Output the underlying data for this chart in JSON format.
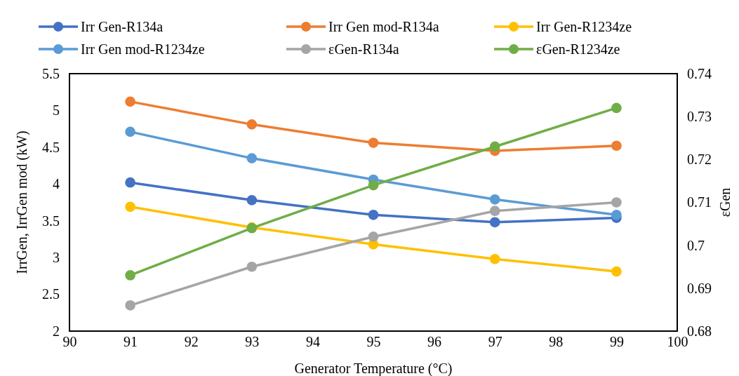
{
  "chart_data": {
    "type": "line",
    "xlabel": "Generator Temperature (°C)",
    "ylabel": "IrrGen, IrrGen mod (kW)",
    "y2label": "εGen",
    "x": [
      91,
      93,
      95,
      97,
      99
    ],
    "xlim": [
      90,
      100
    ],
    "xticks": [
      90,
      91,
      92,
      93,
      94,
      95,
      96,
      97,
      98,
      99,
      100
    ],
    "ylim": [
      2,
      5.5
    ],
    "yticks": [
      2,
      2.5,
      3,
      3.5,
      4,
      4.5,
      5,
      5.5
    ],
    "y2lim": [
      0.68,
      0.74
    ],
    "y2ticks": [
      0.68,
      0.69,
      0.7,
      0.71,
      0.72,
      0.73,
      0.74
    ],
    "grid": false,
    "legend": "top",
    "marker": "circle",
    "line_style": "solid",
    "series": [
      {
        "name": "Irr Gen-R134a",
        "color": "#4472c4",
        "values": [
          4.02,
          3.78,
          3.58,
          3.48,
          3.54
        ]
      },
      {
        "name": "Irr Gen mod-R134a",
        "color": "#ed7d31",
        "values": [
          5.12,
          4.81,
          4.56,
          4.45,
          4.52
        ]
      },
      {
        "name": "Irr Gen-R1234ze",
        "color": "#ffc000",
        "values": [
          3.69,
          3.41,
          3.18,
          2.98,
          2.81
        ]
      },
      {
        "name": "Irr Gen mod-R1234ze",
        "color": "#5b9bd5",
        "values": [
          4.71,
          4.35,
          4.06,
          3.79,
          3.58
        ]
      },
      {
        "name": "εGen-R134a",
        "color": "#a5a5a5",
        "axis": "y2",
        "values": [
          0.686,
          0.695,
          0.702,
          0.708,
          0.71
        ]
      },
      {
        "name": "εGen-R1234ze",
        "color": "#70ad47",
        "axis": "y2",
        "values": [
          0.693,
          0.704,
          0.714,
          0.723,
          0.732
        ]
      }
    ]
  }
}
